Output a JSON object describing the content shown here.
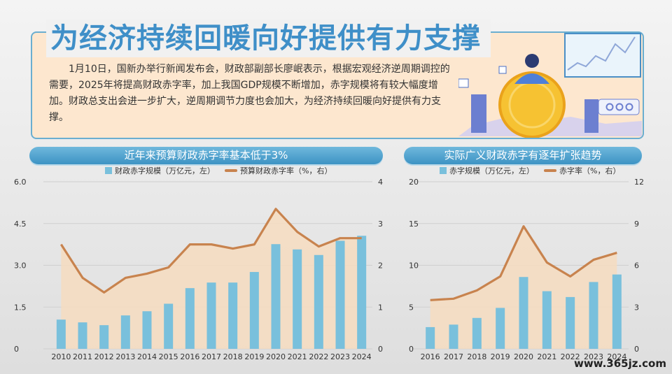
{
  "title": "为经济持续回暖向好提供有力支撑",
  "intro": "1月10日，国新办举行新闻发布会，财政部副部长廖岷表示，根据宏观经济逆周期调控的需要，2025年将提高财政赤字率，加上我国GDP规模不断增加，赤字规模将有较大幅度增加。财政总支出会进一步扩大，逆周期调节力度也会加大，为经济持续回暖向好提供有力支撑。",
  "watermark": "www.365jz.com",
  "colors": {
    "bar": "#79c0dc",
    "line": "#c8834e",
    "area": "#f6dcbf",
    "header": "#4a9ccb"
  },
  "chart_data": [
    {
      "type": "bar",
      "title": "近年来预算财政赤字率基本低于3%",
      "legend": [
        "财政赤字规模（万亿元，左）",
        "预算财政赤字率（%，右）"
      ],
      "categories": [
        "2010",
        "2011",
        "2012",
        "2013",
        "2014",
        "2015",
        "2016",
        "2017",
        "2018",
        "2019",
        "2020",
        "2021",
        "2022",
        "2023",
        "2024"
      ],
      "series": [
        {
          "name": "财政赤字规模（万亿元，左）",
          "type": "bar",
          "axis": "left",
          "values": [
            1.05,
            0.95,
            0.85,
            1.2,
            1.35,
            1.62,
            2.18,
            2.38,
            2.38,
            2.76,
            3.76,
            3.57,
            3.37,
            3.88,
            4.06
          ]
        },
        {
          "name": "预算财政赤字率（%，右）",
          "type": "line",
          "axis": "right",
          "values": [
            2.5,
            1.7,
            1.35,
            1.7,
            1.8,
            1.95,
            2.5,
            2.5,
            2.4,
            2.5,
            3.35,
            2.8,
            2.45,
            2.65,
            2.65
          ]
        }
      ],
      "left_axis": {
        "ylim": [
          0,
          6.0
        ],
        "ticks": [
          "0",
          "1.5",
          "3.0",
          "4.5",
          "6.0"
        ]
      },
      "right_axis": {
        "ylim": [
          0,
          4
        ],
        "ticks": [
          "0",
          "1",
          "2",
          "3",
          "4"
        ]
      },
      "legend_position": "top"
    },
    {
      "type": "bar",
      "title": "实际广义财政赤字有逐年扩张趋势",
      "legend": [
        "赤字规模（万亿元，左）",
        "赤字率（%，右）"
      ],
      "categories": [
        "2016",
        "2017",
        "2018",
        "2019",
        "2020",
        "2021",
        "2022",
        "2023",
        "2024"
      ],
      "series": [
        {
          "name": "赤字规模（万亿元，左）",
          "type": "bar",
          "axis": "left",
          "values": [
            2.6,
            2.9,
            3.7,
            4.9,
            8.6,
            6.9,
            6.2,
            8.0,
            8.9
          ]
        },
        {
          "name": "赤字率（%，右）",
          "type": "line",
          "axis": "right",
          "values": [
            3.5,
            3.6,
            4.2,
            5.2,
            8.8,
            6.2,
            5.2,
            6.4,
            6.9
          ]
        }
      ],
      "left_axis": {
        "ylim": [
          0,
          20
        ],
        "ticks": [
          "0",
          "5",
          "10",
          "15",
          "20"
        ]
      },
      "right_axis": {
        "ylim": [
          0,
          12
        ],
        "ticks": [
          "0",
          "3",
          "6",
          "9",
          "12"
        ]
      },
      "legend_position": "top"
    }
  ]
}
